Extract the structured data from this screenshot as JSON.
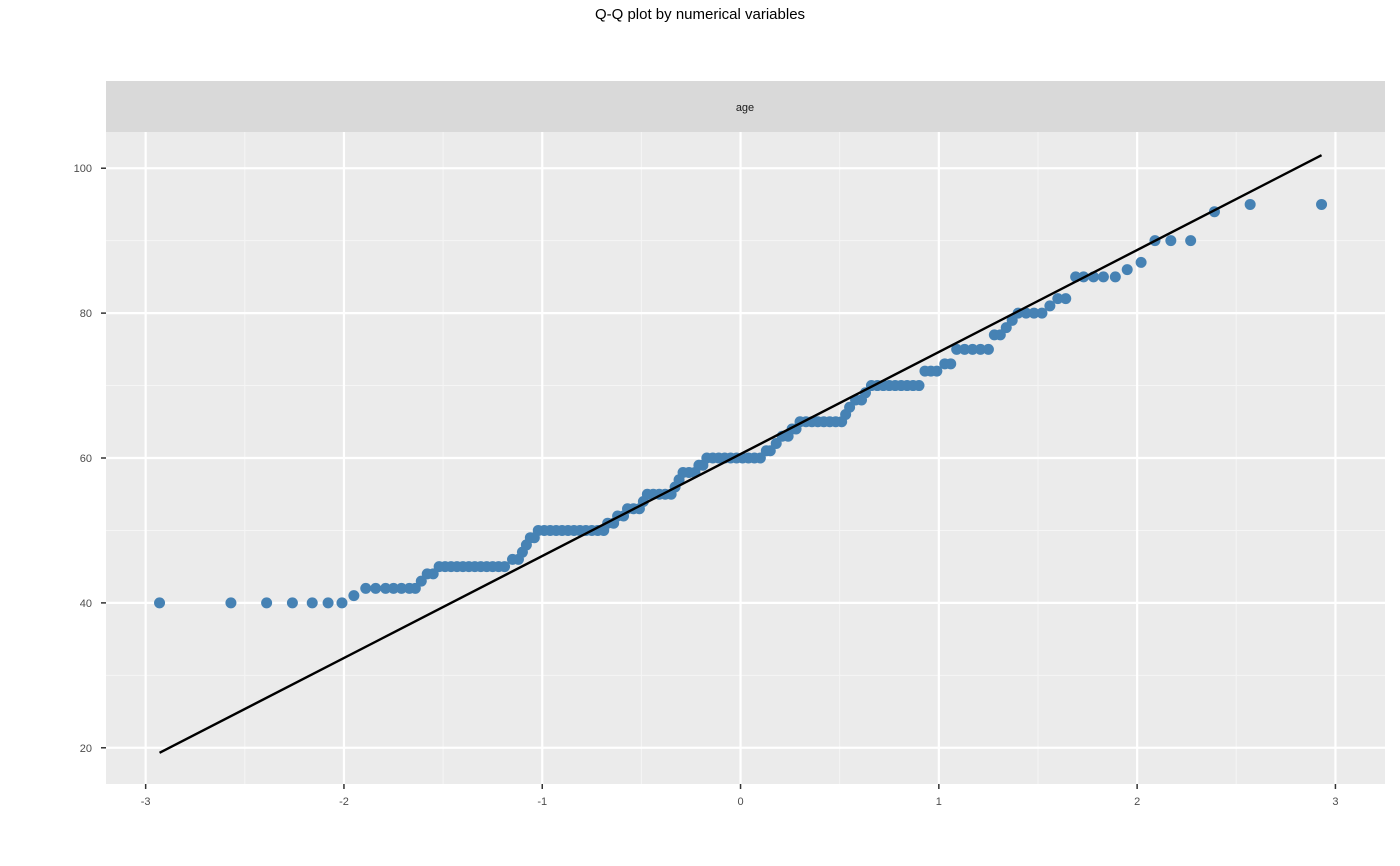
{
  "chart_data": {
    "type": "scatter",
    "title": "Q-Q plot by numerical variables",
    "facet_label": "age",
    "xlim": [
      -3.2,
      3.25
    ],
    "ylim": [
      15,
      105
    ],
    "x_ticks": [
      -3,
      -2,
      -1,
      0,
      1,
      2,
      3
    ],
    "y_ticks": [
      20,
      40,
      60,
      80,
      100
    ],
    "grid": true,
    "point_color": "#4682B4",
    "line_color": "#000000",
    "reference_line": {
      "x": [
        -2.93,
        2.93
      ],
      "y": [
        19.3,
        101.8
      ]
    },
    "points": [
      [
        -2.93,
        40
      ],
      [
        -2.57,
        40
      ],
      [
        -2.39,
        40
      ],
      [
        -2.26,
        40
      ],
      [
        -2.16,
        40
      ],
      [
        -2.08,
        40
      ],
      [
        -2.01,
        40
      ],
      [
        -1.95,
        41
      ],
      [
        -1.89,
        42
      ],
      [
        -1.84,
        42
      ],
      [
        -1.79,
        42
      ],
      [
        -1.75,
        42
      ],
      [
        -1.71,
        42
      ],
      [
        -1.67,
        42
      ],
      [
        -1.64,
        42
      ],
      [
        -1.61,
        43
      ],
      [
        -1.58,
        44
      ],
      [
        -1.55,
        44
      ],
      [
        -1.52,
        45
      ],
      [
        -1.49,
        45
      ],
      [
        -1.46,
        45
      ],
      [
        -1.43,
        45
      ],
      [
        -1.4,
        45
      ],
      [
        -1.37,
        45
      ],
      [
        -1.34,
        45
      ],
      [
        -1.31,
        45
      ],
      [
        -1.28,
        45
      ],
      [
        -1.25,
        45
      ],
      [
        -1.22,
        45
      ],
      [
        -1.19,
        45
      ],
      [
        -1.15,
        46
      ],
      [
        -1.12,
        46
      ],
      [
        -1.1,
        47
      ],
      [
        -1.08,
        48
      ],
      [
        -1.06,
        49
      ],
      [
        -1.04,
        49
      ],
      [
        -1.02,
        50
      ],
      [
        -0.99,
        50
      ],
      [
        -0.96,
        50
      ],
      [
        -0.93,
        50
      ],
      [
        -0.9,
        50
      ],
      [
        -0.87,
        50
      ],
      [
        -0.84,
        50
      ],
      [
        -0.81,
        50
      ],
      [
        -0.78,
        50
      ],
      [
        -0.75,
        50
      ],
      [
        -0.72,
        50
      ],
      [
        -0.69,
        50
      ],
      [
        -0.67,
        51
      ],
      [
        -0.64,
        51
      ],
      [
        -0.62,
        52
      ],
      [
        -0.59,
        52
      ],
      [
        -0.57,
        53
      ],
      [
        -0.54,
        53
      ],
      [
        -0.51,
        53
      ],
      [
        -0.49,
        54
      ],
      [
        -0.47,
        55
      ],
      [
        -0.44,
        55
      ],
      [
        -0.41,
        55
      ],
      [
        -0.38,
        55
      ],
      [
        -0.35,
        55
      ],
      [
        -0.33,
        56
      ],
      [
        -0.31,
        57
      ],
      [
        -0.29,
        58
      ],
      [
        -0.26,
        58
      ],
      [
        -0.23,
        58
      ],
      [
        -0.21,
        59
      ],
      [
        -0.19,
        59
      ],
      [
        -0.17,
        60
      ],
      [
        -0.14,
        60
      ],
      [
        -0.11,
        60
      ],
      [
        -0.08,
        60
      ],
      [
        -0.05,
        60
      ],
      [
        -0.02,
        60
      ],
      [
        0.01,
        60
      ],
      [
        0.04,
        60
      ],
      [
        0.07,
        60
      ],
      [
        0.1,
        60
      ],
      [
        0.13,
        61
      ],
      [
        0.15,
        61
      ],
      [
        0.18,
        62
      ],
      [
        0.21,
        63
      ],
      [
        0.24,
        63
      ],
      [
        0.26,
        64
      ],
      [
        0.28,
        64
      ],
      [
        0.3,
        65
      ],
      [
        0.33,
        65
      ],
      [
        0.36,
        65
      ],
      [
        0.39,
        65
      ],
      [
        0.42,
        65
      ],
      [
        0.45,
        65
      ],
      [
        0.48,
        65
      ],
      [
        0.51,
        65
      ],
      [
        0.53,
        66
      ],
      [
        0.55,
        67
      ],
      [
        0.58,
        68
      ],
      [
        0.61,
        68
      ],
      [
        0.63,
        69
      ],
      [
        0.66,
        70
      ],
      [
        0.69,
        70
      ],
      [
        0.72,
        70
      ],
      [
        0.75,
        70
      ],
      [
        0.78,
        70
      ],
      [
        0.81,
        70
      ],
      [
        0.84,
        70
      ],
      [
        0.87,
        70
      ],
      [
        0.9,
        70
      ],
      [
        0.93,
        72
      ],
      [
        0.96,
        72
      ],
      [
        0.99,
        72
      ],
      [
        1.03,
        73
      ],
      [
        1.06,
        73
      ],
      [
        1.09,
        75
      ],
      [
        1.13,
        75
      ],
      [
        1.17,
        75
      ],
      [
        1.21,
        75
      ],
      [
        1.25,
        75
      ],
      [
        1.28,
        77
      ],
      [
        1.31,
        77
      ],
      [
        1.34,
        78
      ],
      [
        1.37,
        79
      ],
      [
        1.4,
        80
      ],
      [
        1.44,
        80
      ],
      [
        1.48,
        80
      ],
      [
        1.52,
        80
      ],
      [
        1.56,
        81
      ],
      [
        1.6,
        82
      ],
      [
        1.64,
        82
      ],
      [
        1.69,
        85
      ],
      [
        1.73,
        85
      ],
      [
        1.78,
        85
      ],
      [
        1.83,
        85
      ],
      [
        1.89,
        85
      ],
      [
        1.95,
        86
      ],
      [
        2.02,
        87
      ],
      [
        2.09,
        90
      ],
      [
        2.17,
        90
      ],
      [
        2.27,
        90
      ],
      [
        2.39,
        94
      ],
      [
        2.57,
        95
      ],
      [
        2.93,
        95
      ]
    ]
  }
}
